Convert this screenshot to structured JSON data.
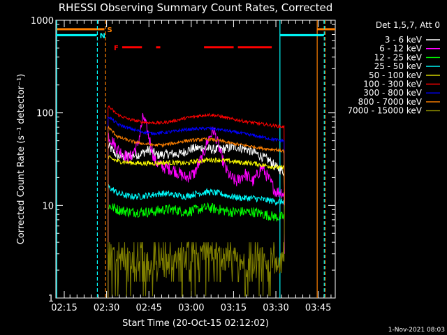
{
  "chart_data": {
    "type": "line",
    "title": "RHESSI Observing Summary Count Rates, Corrected",
    "xlabel": "Start Time (20-Oct-15 02:12:02)",
    "ylabel": "Corrected Count Rate (s⁻¹ detector⁻¹)",
    "ylog": true,
    "ylim": [
      1,
      1000
    ],
    "xlim_minutes": [
      0,
      99
    ],
    "x_ticks": [
      {
        "label": "02:15",
        "minute": 2.97
      },
      {
        "label": "02:30",
        "minute": 17.97
      },
      {
        "label": "02:45",
        "minute": 32.97
      },
      {
        "label": "03:00",
        "minute": 47.97
      },
      {
        "label": "03:15",
        "minute": 62.97
      },
      {
        "label": "03:30",
        "minute": 77.97
      },
      {
        "label": "03:45",
        "minute": 92.97
      }
    ],
    "y_ticks": [
      {
        "label": "1",
        "value": 1
      },
      {
        "label": "10",
        "value": 10
      },
      {
        "label": "100",
        "value": 100
      },
      {
        "label": "1000",
        "value": 1000
      }
    ],
    "legend_header": "Det 1,5,7, Att 0",
    "legend_position": "top-right-outside",
    "timestamp": "1-Nov-2021 08:03",
    "data_start_minute": 18.5,
    "data_end_minute": 81.0,
    "series": [
      {
        "name": "3 - 6 keV",
        "color": "#ffffff",
        "x": [
          18.5,
          22,
          26,
          30,
          33,
          36,
          40,
          44,
          48,
          52,
          56,
          60,
          64,
          68,
          72,
          76,
          78,
          80,
          81
        ],
        "y": [
          44,
          34,
          34,
          36,
          40,
          35,
          36,
          36,
          41,
          42,
          40,
          41,
          43,
          40,
          35,
          30,
          26,
          24,
          23
        ]
      },
      {
        "name": "6 - 12 keV",
        "color": "#ff00ff",
        "x": [
          18.5,
          22,
          26,
          29,
          31,
          33,
          35,
          38,
          42,
          46,
          49,
          52,
          54,
          56,
          58,
          60,
          62,
          64,
          67,
          70,
          73,
          76,
          78,
          80,
          81
        ],
        "y": [
          58,
          40,
          32,
          45,
          92,
          55,
          30,
          26,
          24,
          20,
          22,
          34,
          52,
          66,
          40,
          25,
          20,
          18,
          22,
          18,
          26,
          18,
          14,
          14,
          13
        ]
      },
      {
        "name": "12 - 25 keV",
        "color": "#00ff00",
        "x": [
          18.5,
          22,
          26,
          30,
          34,
          38,
          42,
          46,
          50,
          54,
          58,
          62,
          66,
          70,
          74,
          78,
          80,
          81
        ],
        "y": [
          10,
          9,
          8.5,
          8.5,
          8.5,
          9,
          9,
          8.5,
          9,
          9.5,
          9,
          8.5,
          8.5,
          8.5,
          8,
          7.5,
          7.5,
          7.5
        ]
      },
      {
        "name": "25 - 50 keV",
        "color": "#00ffff",
        "x": [
          18.5,
          22,
          26,
          30,
          34,
          38,
          42,
          46,
          50,
          54,
          58,
          62,
          66,
          70,
          74,
          78,
          80,
          81
        ],
        "y": [
          16,
          13.5,
          12.5,
          12.5,
          13,
          13.5,
          13,
          12.5,
          13.5,
          14,
          13.5,
          12.5,
          12,
          12,
          11.5,
          11,
          11,
          11
        ]
      },
      {
        "name": "50 - 100 keV",
        "color": "#ffff00",
        "x": [
          18.5,
          22,
          26,
          30,
          34,
          38,
          42,
          46,
          50,
          54,
          58,
          62,
          66,
          70,
          74,
          78,
          80,
          81
        ],
        "y": [
          33,
          30,
          29,
          28.5,
          28.5,
          29,
          29,
          28.5,
          30,
          31,
          31,
          30,
          29,
          28.5,
          27,
          26,
          25.5,
          25.5
        ]
      },
      {
        "name": "100 - 300 keV",
        "color": "#ff0000",
        "x": [
          18.5,
          22,
          26,
          30,
          34,
          38,
          42,
          46,
          50,
          54,
          58,
          62,
          66,
          70,
          74,
          78,
          80,
          81
        ],
        "y": [
          118,
          95,
          85,
          80,
          78,
          78,
          82,
          88,
          92,
          96,
          92,
          86,
          82,
          78,
          75,
          72,
          71,
          70
        ]
      },
      {
        "name": "300 - 800 keV",
        "color": "#0000ff",
        "x": [
          18.5,
          22,
          26,
          30,
          34,
          38,
          42,
          46,
          50,
          54,
          58,
          62,
          66,
          70,
          74,
          78,
          80,
          81
        ],
        "y": [
          92,
          75,
          68,
          63,
          60,
          61,
          63,
          66,
          67,
          68,
          66,
          63,
          60,
          57,
          54,
          51,
          50,
          50
        ]
      },
      {
        "name": "800 - 7000 keV",
        "color": "#ff8000",
        "x": [
          18.5,
          22,
          26,
          30,
          34,
          38,
          42,
          46,
          50,
          54,
          58,
          62,
          66,
          70,
          74,
          78,
          80,
          81
        ],
        "y": [
          70,
          55,
          50,
          47,
          45,
          45,
          47,
          50,
          51,
          52,
          50,
          47,
          45,
          43,
          41,
          40,
          39,
          39
        ]
      },
      {
        "name": "7000 - 15000 keV",
        "color": "#808000",
        "x": [
          18.5,
          22,
          26,
          30,
          34,
          38,
          42,
          46,
          50,
          54,
          58,
          62,
          66,
          70,
          74,
          78,
          80,
          81
        ],
        "y": [
          3,
          2.8,
          2.5,
          2.6,
          2.4,
          2.3,
          2.5,
          2.8,
          3,
          3.2,
          3,
          2.7,
          2.5,
          2.3,
          2.2,
          2.3,
          2.5,
          2.4
        ]
      }
    ],
    "flags": {
      "attenuator_s": {
        "label": "S",
        "color": "#ff8000",
        "y": 800,
        "segments": [
          [
            0,
            17.2
          ],
          [
            92.5,
            99
          ]
        ],
        "vlines": [
          {
            "minute": 17.6,
            "style": "dashed"
          },
          {
            "minute": 92.6,
            "style": "solid"
          },
          {
            "minute": 95.4,
            "style": "dashed"
          }
        ]
      },
      "night_n": {
        "label": "N",
        "color": "#00ffff",
        "y": 690,
        "segments": [
          [
            0,
            14.5
          ],
          [
            79.5,
            95.0
          ]
        ],
        "vlines": [
          {
            "minute": 0.3,
            "style": "solid"
          },
          {
            "minute": 14.7,
            "style": "dashed"
          },
          {
            "minute": 79.4,
            "style": "solid"
          },
          {
            "minute": 95.1,
            "style": "dashed"
          }
        ]
      },
      "flare_f": {
        "label": "F",
        "color": "#ff0000",
        "y": 510,
        "segments": [
          [
            23.5,
            30.5
          ],
          [
            35.5,
            37.0
          ],
          [
            52.5,
            63.0
          ],
          [
            64.5,
            76.5
          ]
        ]
      }
    }
  }
}
